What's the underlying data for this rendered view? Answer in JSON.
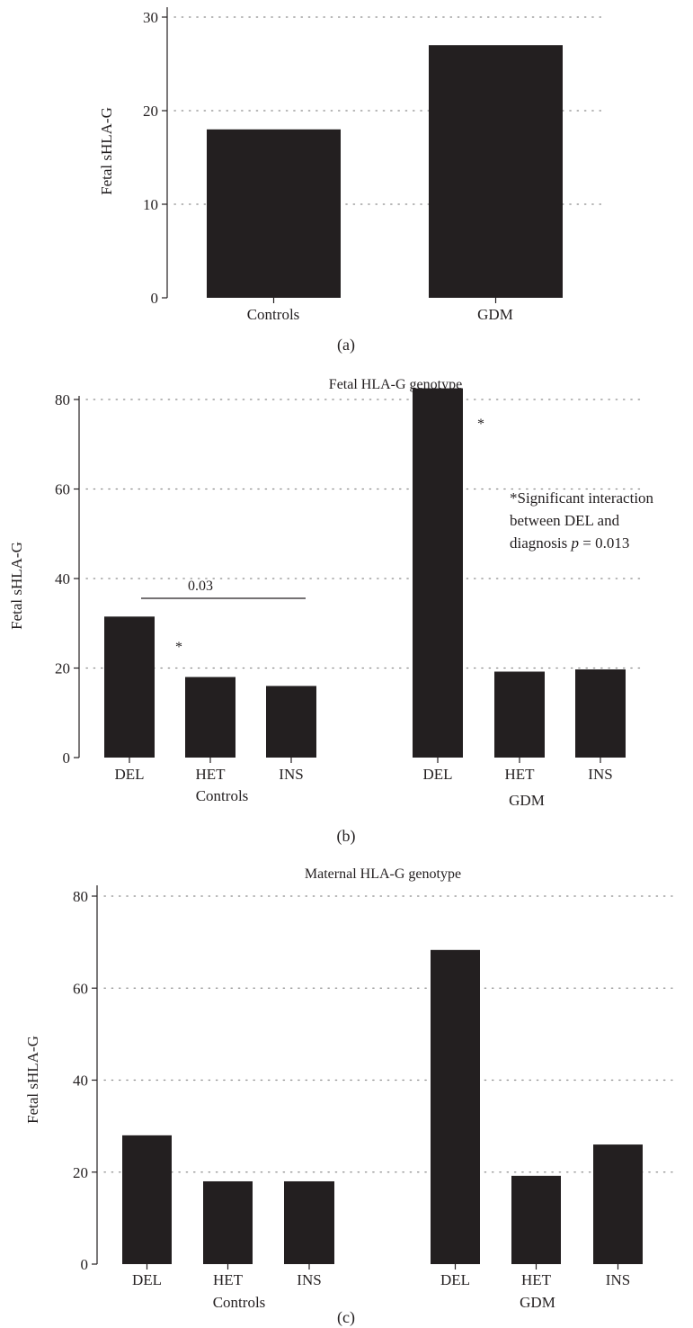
{
  "chart_data": [
    {
      "panel": "(a)",
      "type": "bar",
      "title": "",
      "ylabel": "Fetal sHLA-G",
      "xlabel": "",
      "ylim": [
        0,
        30
      ],
      "yticks": [
        0,
        10,
        20,
        30
      ],
      "grid": "horizontal dotted",
      "categories": [
        "Controls",
        "GDM"
      ],
      "values": [
        18,
        27
      ]
    },
    {
      "panel": "(b)",
      "type": "bar",
      "title": "Fetal HLA-G genotype",
      "ylabel": "Fetal sHLA-G",
      "xlabel": "",
      "ylim": [
        0,
        86
      ],
      "yticks": [
        0,
        20,
        40,
        60,
        80
      ],
      "grid": "horizontal dotted",
      "groups": [
        {
          "label": "Controls",
          "categories": [
            "DEL",
            "HET",
            "INS"
          ],
          "values": [
            31.5,
            18,
            16
          ]
        },
        {
          "label": "GDM",
          "categories": [
            "DEL",
            "HET",
            "INS"
          ],
          "values": [
            82.5,
            19.2,
            19.7
          ]
        }
      ],
      "annotations": {
        "bracket_label": "0.03",
        "star_controls": "*",
        "star_gdm": "*",
        "note_line1": "*Significant interaction",
        "note_line2": "between DEL and",
        "note_line3_prefix": "diagnosis ",
        "note_line3_p": "p",
        "note_line3_suffix": " = 0.013"
      }
    },
    {
      "panel": "(c)",
      "type": "bar",
      "title": "Maternal HLA-G genotype",
      "ylabel": "Fetal sHLA-G",
      "xlabel": "",
      "ylim": [
        0,
        84
      ],
      "yticks": [
        0,
        20,
        40,
        60,
        80
      ],
      "grid": "horizontal dotted",
      "groups": [
        {
          "label": "Controls",
          "categories": [
            "DEL",
            "HET",
            "INS"
          ],
          "values": [
            28,
            18,
            18
          ]
        },
        {
          "label": "GDM",
          "categories": [
            "DEL",
            "HET",
            "INS"
          ],
          "values": [
            68.3,
            19.2,
            26
          ]
        }
      ]
    }
  ],
  "colors": {
    "bar": "#231f20",
    "axis": "#231f20",
    "grid": "#8c8c8c",
    "text": "#231f20"
  }
}
